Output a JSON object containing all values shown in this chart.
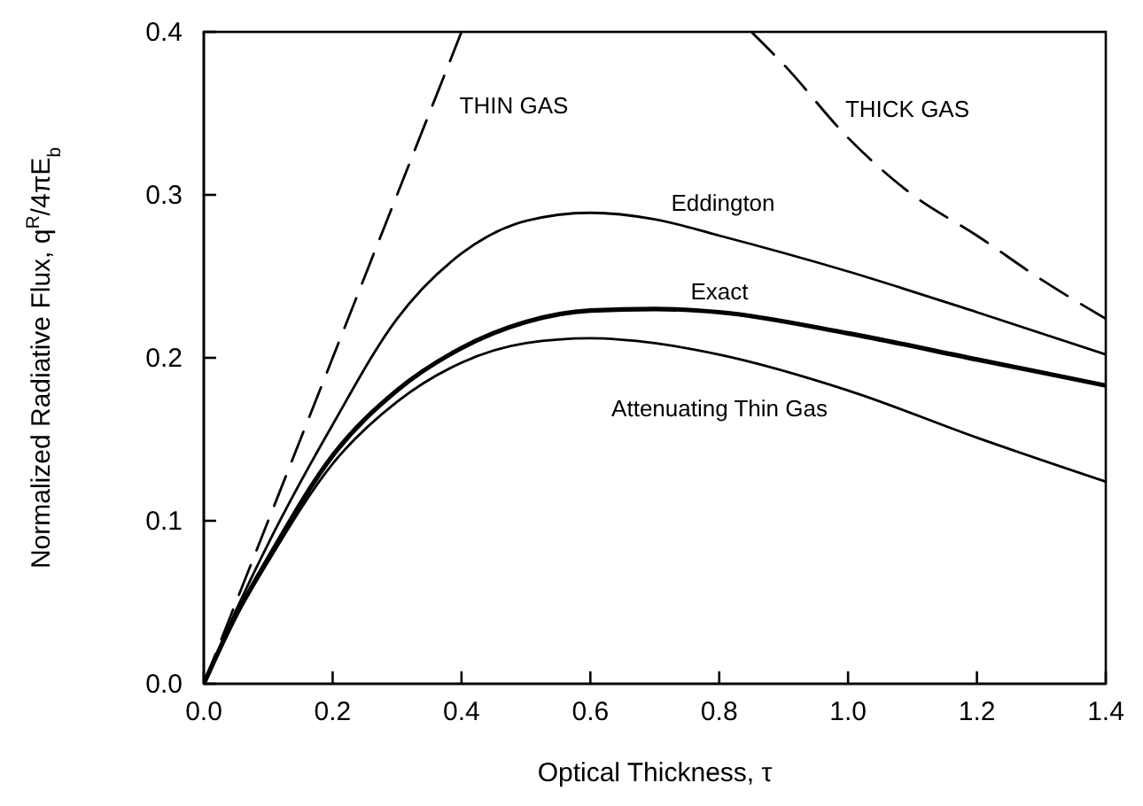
{
  "chart_data": {
    "type": "line",
    "xlabel": "Optical Thickness, τ",
    "ylabel": "Normalized Radiative Flux, q$^{R}$/4πE$_{b}$",
    "xlim": [
      0,
      1.4
    ],
    "xticks": [
      {
        "value": 0,
        "label": "0.0"
      },
      0.2,
      0.4,
      0.6,
      0.8,
      {
        "value": 1,
        "label": "1.0"
      },
      1.2,
      1.4
    ],
    "ylim": [
      0,
      0.4
    ],
    "yticks": [
      {
        "value": 0,
        "label": "0.0"
      },
      0.1,
      0.2,
      0.3,
      0.4
    ],
    "grid": false,
    "marker": "none",
    "series": [
      {
        "name": "THIN GAS",
        "color": "#000000",
        "line_style": "dashed",
        "x": [
          0,
          0.4
        ],
        "values": [
          0,
          0.4
        ]
      },
      {
        "name": "THICK GAS",
        "color": "#000000",
        "line_style": "dashed",
        "x": [
          0.85,
          0.9,
          1.0,
          1.1,
          1.2,
          1.3,
          1.4
        ],
        "values": [
          0.4,
          0.38,
          0.335,
          0.3,
          0.275,
          0.248,
          0.224
        ]
      },
      {
        "name": "Eddington",
        "color": "#000000",
        "line_style": "solid",
        "x": [
          0,
          0.05,
          0.1,
          0.2,
          0.3,
          0.4,
          0.5,
          0.6,
          0.7,
          0.8,
          1.0,
          1.2,
          1.4
        ],
        "values": [
          0,
          0.045,
          0.086,
          0.159,
          0.224,
          0.264,
          0.284,
          0.289,
          0.285,
          0.275,
          0.253,
          0.228,
          0.202
        ]
      },
      {
        "name": "Exact",
        "color": "#000000",
        "line_style": "solid",
        "x": [
          0,
          0.05,
          0.1,
          0.2,
          0.3,
          0.4,
          0.5,
          0.6,
          0.7,
          0.8,
          1.0,
          1.2,
          1.4
        ],
        "values": [
          0,
          0.042,
          0.077,
          0.14,
          0.18,
          0.206,
          0.222,
          0.229,
          0.23,
          0.228,
          0.215,
          0.199,
          0.183
        ]
      },
      {
        "name": "Attenuating Thin Gas",
        "color": "#000000",
        "line_style": "solid",
        "x": [
          0,
          0.05,
          0.1,
          0.2,
          0.3,
          0.4,
          0.5,
          0.6,
          0.7,
          0.8,
          1.0,
          1.2,
          1.4
        ],
        "values": [
          0,
          0.041,
          0.075,
          0.135,
          0.173,
          0.197,
          0.209,
          0.212,
          0.209,
          0.202,
          0.18,
          0.151,
          0.124
        ]
      }
    ]
  }
}
